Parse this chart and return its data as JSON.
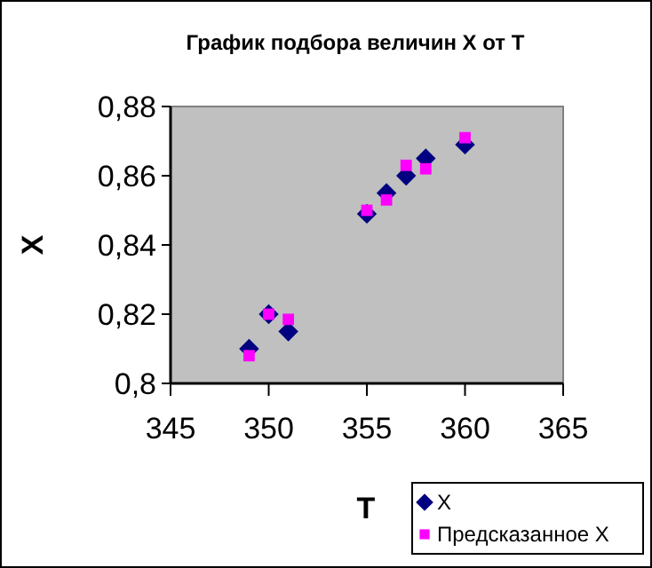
{
  "chart_data": {
    "type": "scatter",
    "title": "График подбора величин X от T",
    "xlabel": "T",
    "ylabel": "X",
    "xlim": [
      345,
      365
    ],
    "xticks": [
      345,
      350,
      355,
      360,
      365
    ],
    "ylim": [
      0.8,
      0.88
    ],
    "yticks": [
      {
        "value": 0.8,
        "label": "0,8"
      },
      {
        "value": 0.82,
        "label": "0,82"
      },
      {
        "value": 0.84,
        "label": "0,84"
      },
      {
        "value": 0.86,
        "label": "0,86"
      },
      {
        "value": 0.88,
        "label": "0,88"
      }
    ],
    "grid": false,
    "legend": "bottom right",
    "series": [
      {
        "name": "X",
        "color": "#000080",
        "marker": "diamond",
        "x": [
          349,
          350,
          351,
          355,
          356,
          357,
          358,
          360
        ],
        "values": [
          0.81,
          0.82,
          0.815,
          0.849,
          0.855,
          0.86,
          0.865,
          0.869
        ]
      },
      {
        "name": "Предсказанное X",
        "color": "#ff00ff",
        "marker": "square",
        "x": [
          349,
          350,
          351,
          355,
          356,
          357,
          358,
          360
        ],
        "values": [
          0.808,
          0.82,
          0.8185,
          0.85,
          0.853,
          0.863,
          0.862,
          0.871
        ]
      }
    ]
  }
}
